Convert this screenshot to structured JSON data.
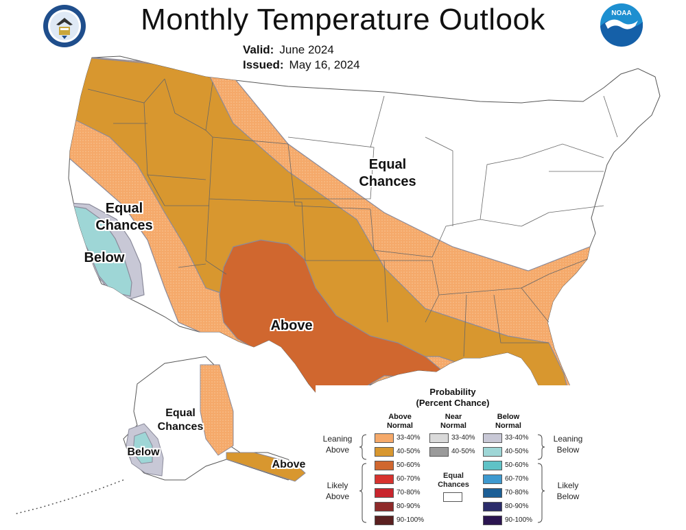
{
  "header": {
    "title": "Monthly Temperature Outlook",
    "valid_label": "Valid:",
    "valid_value": "June 2024",
    "issued_label": "Issued:",
    "issued_value": "May 16, 2024"
  },
  "logos": {
    "left": "doc-seal",
    "right": "noaa",
    "right_text": "NOAA"
  },
  "map_labels": {
    "equal_chances_central": [
      "Equal",
      "Chances"
    ],
    "equal_chances_west": [
      "Equal",
      "Chances"
    ],
    "below_west": "Below",
    "above_south": "Above",
    "equal_chances_alaska": [
      "Equal",
      "Chances"
    ],
    "below_alaska": "Below",
    "above_alaska": "Above"
  },
  "colors": {
    "above_33_40": "#F5A96A",
    "above_40_50": "#D8972F",
    "above_50_60": "#D0672F",
    "below_33_40": "#C8C8D6",
    "below_40_50": "#9ED6D6",
    "state_lines": "#888888",
    "ocean": "#ffffff"
  },
  "legend": {
    "title_line1": "Probability",
    "title_line2": "(Percent Chance)",
    "col_above": [
      "Above",
      "Normal"
    ],
    "col_near": [
      "Near",
      "Normal"
    ],
    "col_below": [
      "Below",
      "Normal"
    ],
    "leaning_above": [
      "Leaning",
      "Above"
    ],
    "likely_above": [
      "Likely",
      "Above"
    ],
    "leaning_below": [
      "Leaning",
      "Below"
    ],
    "likely_below": [
      "Likely",
      "Below"
    ],
    "equal_chances": [
      "Equal",
      "Chances"
    ],
    "above_rows": [
      {
        "label": "33-40%",
        "color": "#F5A96A"
      },
      {
        "label": "40-50%",
        "color": "#D8972F"
      },
      {
        "label": "50-60%",
        "color": "#D0672F"
      },
      {
        "label": "60-70%",
        "color": "#D7322E"
      },
      {
        "label": "70-80%",
        "color": "#C9252D"
      },
      {
        "label": "80-90%",
        "color": "#8E2A2A"
      },
      {
        "label": "90-100%",
        "color": "#5A2020"
      }
    ],
    "near_rows": [
      {
        "label": "33-40%",
        "color": "#DADADA"
      },
      {
        "label": "40-50%",
        "color": "#9A9A9A"
      }
    ],
    "below_rows": [
      {
        "label": "33-40%",
        "color": "#C8C8D6"
      },
      {
        "label": "40-50%",
        "color": "#9ED6D6"
      },
      {
        "label": "50-60%",
        "color": "#5FC2C6"
      },
      {
        "label": "60-70%",
        "color": "#3E99CF"
      },
      {
        "label": "70-80%",
        "color": "#1C5F96"
      },
      {
        "label": "80-90%",
        "color": "#2B2C6A"
      },
      {
        "label": "90-100%",
        "color": "#2B1550"
      }
    ]
  }
}
